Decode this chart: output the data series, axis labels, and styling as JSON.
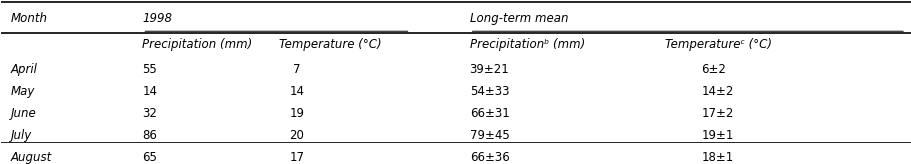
{
  "months": [
    "April",
    "May",
    "June",
    "July",
    "August"
  ],
  "precip_1998": [
    "55",
    "14",
    "32",
    "86",
    "65"
  ],
  "temp_1998": [
    "7",
    "14",
    "19",
    "20",
    "17"
  ],
  "precip_lt": [
    "39±21",
    "54±33",
    "66±31",
    "79±45",
    "66±36"
  ],
  "temp_lt": [
    "6±2",
    "14±2",
    "17±2",
    "19±1",
    "18±1"
  ],
  "col_header_row1": [
    "Month",
    "1998",
    "",
    "Long-term mean",
    ""
  ],
  "col_header_row2": [
    "",
    "Precipitation (mm)",
    "Temperature (°C)",
    "Precipitationᵇ (mm)",
    "Temperatureᶜ (°C)"
  ],
  "bg_color": "#ffffff",
  "text_color": "#000000",
  "font_size": 8.5
}
